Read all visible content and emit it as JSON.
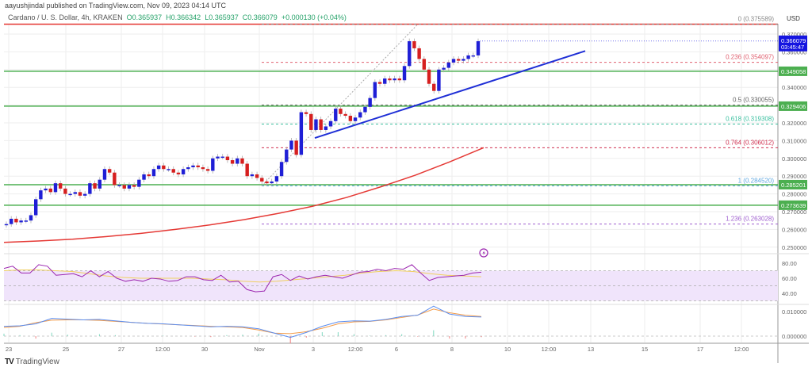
{
  "header": {
    "publisher": "aayushjindal published on TradingView.com, Nov 09, 2023 04:14 UTC",
    "symbol": "Cardano / U. S. Dollar, 4h, KRAKEN",
    "open": "O0.365937",
    "high": "H0.366342",
    "low": "L0.365937",
    "close": "C0.366079",
    "change": "+0.000130 (+0.04%)"
  },
  "currency": "USD",
  "logo_text": "TradingView",
  "colors": {
    "up": "#1f1fd6",
    "down": "#d61f1f",
    "support": "#4caf50",
    "trendline": "#1f2fd6",
    "ema": "#e53935",
    "rsi": "#9c27b0",
    "rsi_ma": "#f0d060",
    "macd": "#5b8def",
    "signal": "#f39c4a",
    "price_label": "#1515e0"
  },
  "chart_data": {
    "type": "candlestick",
    "title": "Cardano / U. S. Dollar, 4h, KRAKEN",
    "ylim": [
      0.245,
      0.378
    ],
    "first_open": 0.2625,
    "close": [
      0.263,
      0.266,
      0.264,
      0.265,
      0.265,
      0.268,
      0.277,
      0.282,
      0.283,
      0.281,
      0.286,
      0.283,
      0.28,
      0.28,
      0.281,
      0.279,
      0.28,
      0.286,
      0.283,
      0.288,
      0.294,
      0.292,
      0.285,
      0.285,
      0.283,
      0.285,
      0.284,
      0.288,
      0.291,
      0.29,
      0.294,
      0.296,
      0.294,
      0.294,
      0.292,
      0.291,
      0.294,
      0.295,
      0.296,
      0.295,
      0.294,
      0.293,
      0.3,
      0.301,
      0.301,
      0.299,
      0.297,
      0.3,
      0.297,
      0.29,
      0.291,
      0.289,
      0.287,
      0.286,
      0.287,
      0.29,
      0.298,
      0.305,
      0.31,
      0.302,
      0.326,
      0.325,
      0.316,
      0.322,
      0.316,
      0.318,
      0.321,
      0.328,
      0.325,
      0.324,
      0.321,
      0.323,
      0.326,
      0.329,
      0.334,
      0.343,
      0.342,
      0.345,
      0.344,
      0.345,
      0.344,
      0.352,
      0.366,
      0.362,
      0.356,
      0.35,
      0.342,
      0.338,
      0.35,
      0.351,
      0.354,
      0.356,
      0.355,
      0.356,
      0.358,
      0.358,
      0.366
    ],
    "ema": [
      0.2527,
      0.2535,
      0.2545,
      0.256,
      0.2578,
      0.26,
      0.2625,
      0.2655,
      0.269,
      0.273,
      0.278,
      0.284,
      0.2905,
      0.298,
      0.306
    ],
    "price_ticks": [
      "0.370000",
      "0.360000",
      "0.340000",
      "0.320000",
      "0.310000",
      "0.300000",
      "0.290000",
      "0.280000",
      "0.270000",
      "0.260000",
      "0.250000"
    ],
    "x_ticks": [
      "23",
      "25",
      "27",
      "12:00",
      "30",
      "Nov",
      "3",
      "12:00",
      "6",
      "8",
      "10",
      "12:00",
      "13",
      "15",
      "17",
      "12:00"
    ],
    "current_price": {
      "value": "0.366079",
      "countdown": "03:45:47"
    },
    "horizontal_levels": [
      {
        "value": 0.375589,
        "label": "",
        "color": "#e53935"
      },
      {
        "value": 0.349058,
        "label": "0.349058",
        "color": "#4caf50"
      },
      {
        "value": 0.329406,
        "label": "0.329406",
        "color": "#4caf50"
      },
      {
        "value": 0.285201,
        "label": "0.285201",
        "color": "#4caf50"
      },
      {
        "value": 0.273639,
        "label": "0.273639",
        "color": "#4caf50"
      }
    ],
    "fibonacci": [
      {
        "value": 0.375589,
        "label": "0 (0.375589)",
        "color": "#888888"
      },
      {
        "value": 0.354097,
        "label": "0.236 (0.354097)",
        "color": "#e06070"
      },
      {
        "value": 0.330055,
        "label": "0.5 (0.330055)",
        "color": "#666666"
      },
      {
        "value": 0.319308,
        "label": "0.618 (0.319308)",
        "color": "#3cc0a0"
      },
      {
        "value": 0.306012,
        "label": "0.764 (0.306012)",
        "color": "#d03050"
      },
      {
        "value": 0.28452,
        "label": "1 (0.284520)",
        "color": "#60a8e0"
      },
      {
        "value": 0.263028,
        "label": "1.236 (0.263028)",
        "color": "#a060d0"
      }
    ],
    "trendline": {
      "from": 0.3115,
      "to": 0.3605
    },
    "rsi": {
      "ticks": [
        "80.00",
        "60.00",
        "40.00"
      ],
      "band": [
        70,
        30
      ],
      "values": [
        73,
        76,
        67,
        67,
        78,
        76,
        64,
        65,
        66,
        62,
        70,
        62,
        69,
        60,
        56,
        58,
        56,
        60,
        59,
        56,
        57,
        62,
        62,
        58,
        57,
        64,
        55,
        56,
        45,
        42,
        43,
        62,
        65,
        57,
        63,
        59,
        62,
        64,
        62,
        60,
        64,
        68,
        69,
        72,
        70,
        73,
        72,
        78,
        67,
        57,
        61,
        62,
        63,
        64,
        67,
        68
      ],
      "ma": [
        70,
        71,
        71,
        70,
        69,
        66,
        63,
        61,
        60,
        60,
        60,
        60,
        59,
        58,
        56,
        55,
        56,
        58,
        60,
        62,
        64,
        67,
        69,
        70,
        69,
        66,
        64,
        63,
        62
      ]
    },
    "macd": {
      "ticks": [
        "0.010000",
        "0.000000"
      ],
      "macd": [
        0.004,
        0.0042,
        0.005,
        0.0072,
        0.0069,
        0.0066,
        0.0068,
        0.0062,
        0.0056,
        0.0052,
        0.005,
        0.0046,
        0.0042,
        0.0038,
        0.004,
        0.0038,
        0.003,
        0.0012,
        -0.0005,
        0.0015,
        0.004,
        0.0058,
        0.0062,
        0.0061,
        0.0068,
        0.008,
        0.0085,
        0.0122,
        0.009,
        0.008,
        0.0078
      ],
      "signal": [
        0.0035,
        0.004,
        0.0055,
        0.0065,
        0.0066,
        0.0066,
        0.0064,
        0.006,
        0.0056,
        0.0052,
        0.0049,
        0.0046,
        0.0043,
        0.004,
        0.0038,
        0.0035,
        0.0025,
        0.0012,
        0.001,
        0.0018,
        0.0032,
        0.005,
        0.0058,
        0.006,
        0.0066,
        0.0076,
        0.0086,
        0.011,
        0.0095,
        0.0085,
        0.008
      ]
    }
  }
}
